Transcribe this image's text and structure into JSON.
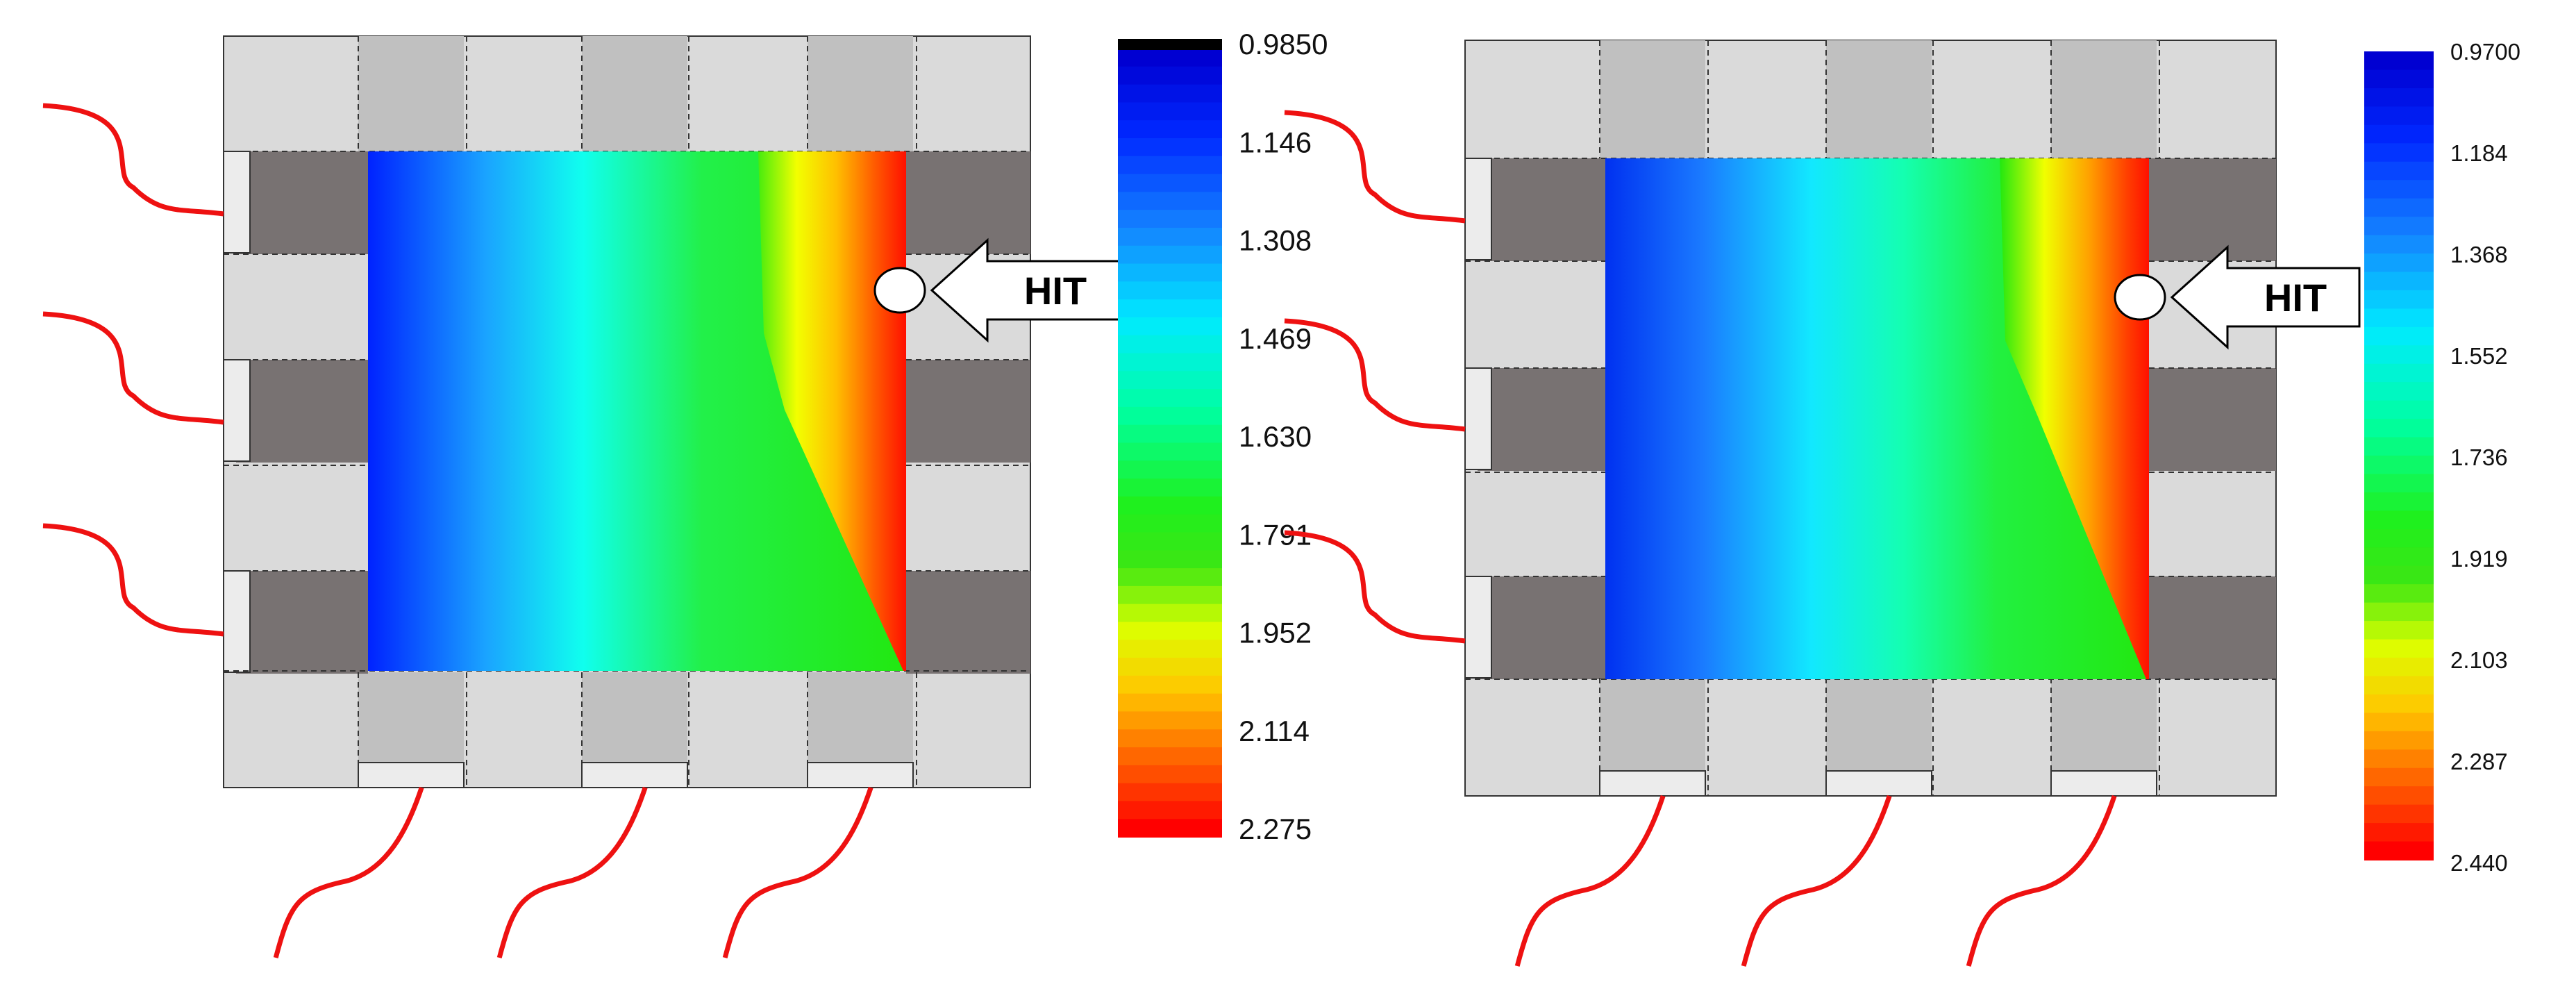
{
  "colors": {
    "background": "#ffffff",
    "tile_light": "#dadada",
    "tile_mid": "#c0c0c0",
    "tile_dark": "#787272",
    "lead_wire": "#ee1111",
    "outline": "#333333"
  },
  "panels": [
    {
      "id": "left",
      "hit_label": "HIT",
      "colorbar": {
        "ticks": [
          "0.9850",
          "1.146",
          "1.308",
          "1.469",
          "1.630",
          "1.791",
          "1.952",
          "2.114",
          "2.275"
        ],
        "min": 0.985,
        "max": 2.275,
        "top_black_band": true
      }
    },
    {
      "id": "right",
      "hit_label": "HIT",
      "colorbar": {
        "ticks": [
          "0.9700",
          "1.184",
          "1.368",
          "1.552",
          "1.736",
          "1.919",
          "2.103",
          "2.287",
          "2.440"
        ],
        "min": 0.97,
        "max": 2.44,
        "top_black_band": false
      }
    }
  ]
}
